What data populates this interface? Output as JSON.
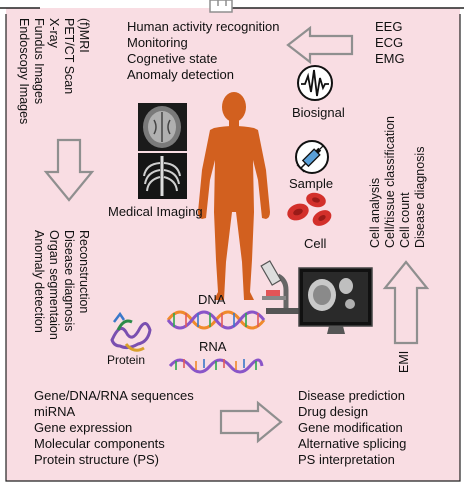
{
  "top_left_list": [
    "(f)MRI",
    "PET/CT Scan",
    "X-ray",
    "Fundus Images",
    "Endoscopy Images"
  ],
  "top_center_list": [
    "Human activity recognition",
    "Monitoring",
    "Cognetive state",
    "Anomaly detection"
  ],
  "top_right_list": [
    "EEG",
    "ECG",
    "EMG"
  ],
  "center_labels": {
    "biosignal": "Biosignal",
    "sample": "Sample",
    "cell": "Cell",
    "medical_imaging": "Medical Imaging",
    "dna": "DNA",
    "rna": "RNA",
    "protein": "Protein",
    "emi": "EMI"
  },
  "right_vertical_list": [
    "Cell analysis",
    "Cell/tissue classification",
    "Cell count",
    "Disease diagnosis"
  ],
  "left_vertical_list": [
    "Reconstruction",
    "Disease diagnosis",
    "Organ segmentaion",
    "Anomaly detection"
  ],
  "bottom_left_list": [
    "Gene/DNA/RNA sequences",
    "miRNA",
    "Gene expression",
    "Molecular components",
    "Protein structure (PS)"
  ],
  "bottom_right_list": [
    "Disease prediction",
    "Drug design",
    "Gene modification",
    "Alternative splicing",
    "PS interpretation"
  ],
  "colors": {
    "background": "#f9dde3",
    "arrow": "#8f8f8f",
    "body": "#d2601f",
    "border": "#222222"
  },
  "icons": [
    "heartbeat-icon",
    "syringe-icon",
    "red-blood-cells-icon",
    "brain-mri-icon",
    "chest-xray-icon",
    "microscope-icon",
    "monitor-icon",
    "protein-icon",
    "dna-helix-icon",
    "rna-strand-icon"
  ]
}
